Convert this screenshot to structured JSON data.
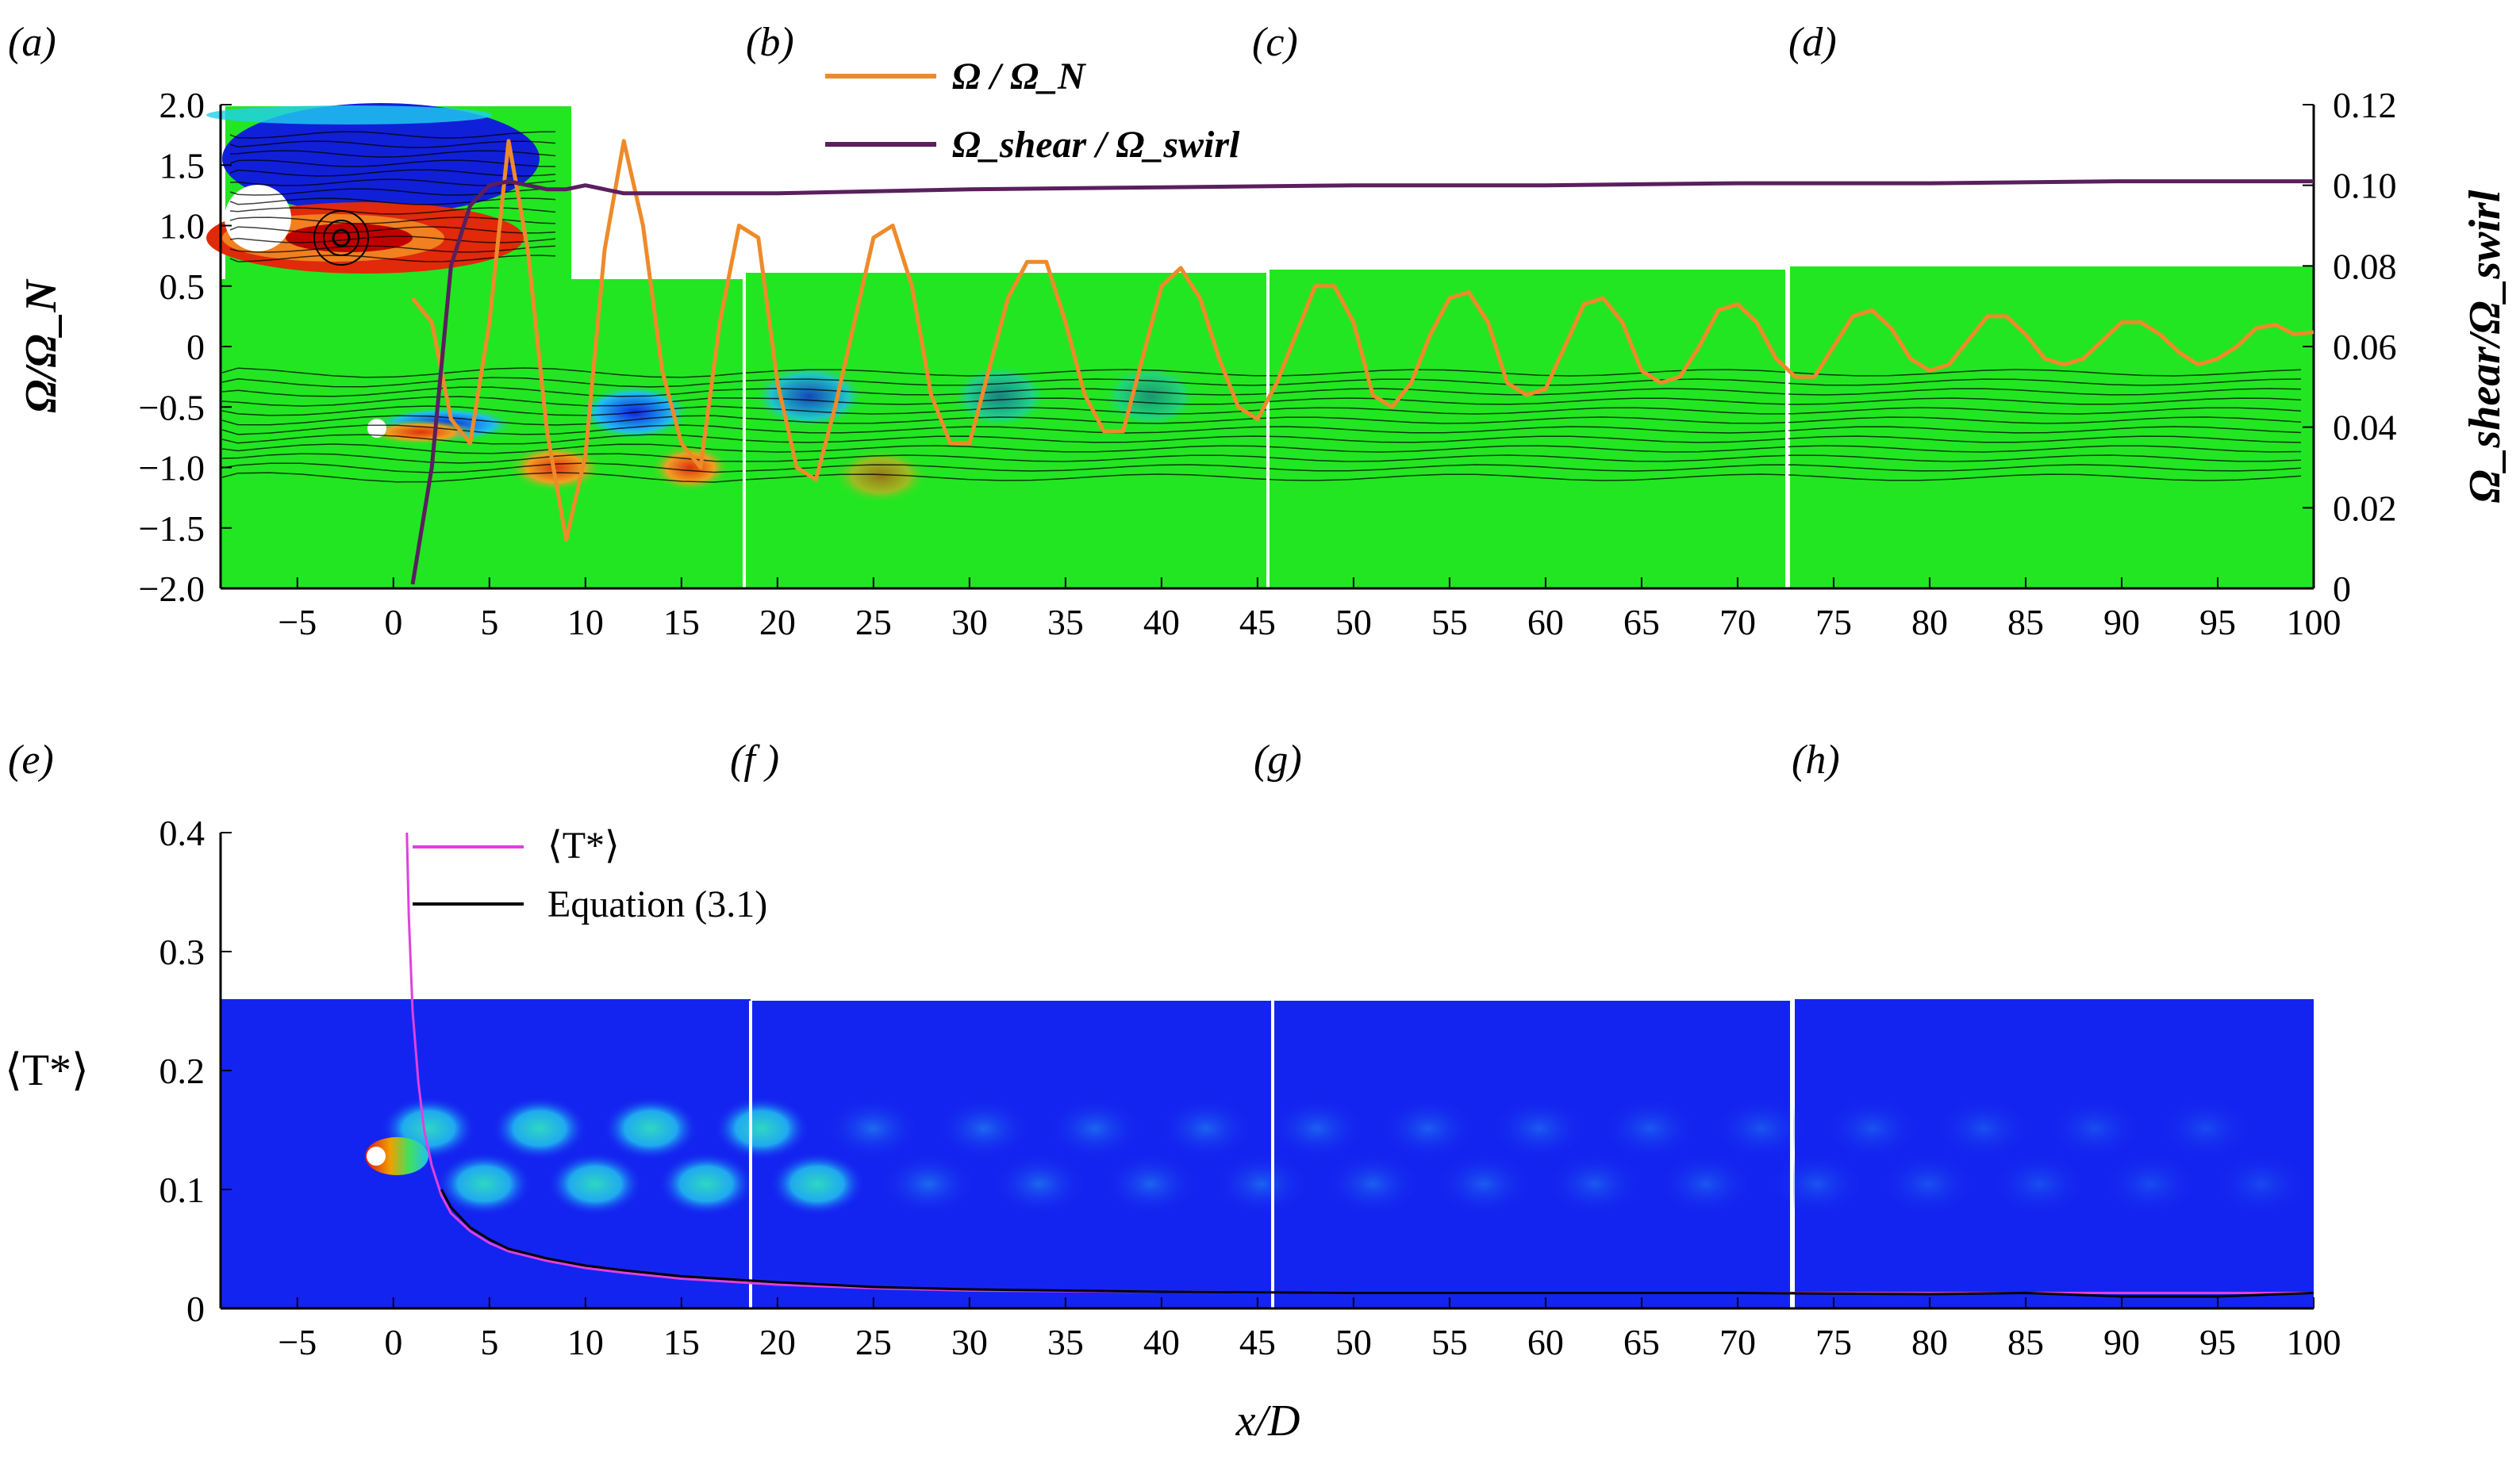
{
  "top_chart": {
    "panel_labels": [
      "(a)",
      "(b)",
      "(c)",
      "(d)"
    ],
    "ylabel_left": "Ω/Ω_N",
    "ylabel_right": "Ω_shear/Ω_swirl",
    "legend": {
      "omega": "Ω / Ω_N",
      "shear": "Ω_shear / Ω_swirl"
    },
    "colors": {
      "omega": "#ee8a2a",
      "shear": "#5a1f5e",
      "field": "#22e622"
    }
  },
  "bottom_chart": {
    "panel_labels": [
      "(e)",
      "(f )",
      "(g)",
      "(h)"
    ],
    "ylabel": "⟨T*⟩",
    "xlabel": "x/D",
    "legend": {
      "t": "⟨T*⟩",
      "eq": "Equation (3.1)"
    },
    "colors": {
      "t": "#e040e0",
      "eq": "#000000",
      "field": "#1424f0"
    }
  },
  "chart_data": [
    {
      "type": "line",
      "xlim": [
        -9,
        100
      ],
      "ylim": [
        -2.0,
        2.0
      ],
      "y2lim": [
        0,
        0.12
      ],
      "x_ticks": [
        -5,
        0,
        5,
        10,
        15,
        20,
        25,
        30,
        35,
        40,
        45,
        50,
        55,
        60,
        65,
        70,
        75,
        80,
        85,
        90,
        95,
        100
      ],
      "y_ticks": [
        "−2.0",
        "−1.5",
        "−1.0",
        "−0.5",
        "0",
        "0.5",
        "1.0",
        "1.5",
        "2.0"
      ],
      "y_tick_values": [
        -2.0,
        -1.5,
        -1.0,
        -0.5,
        0,
        0.5,
        1.0,
        1.5,
        2.0
      ],
      "y2_ticks": [
        "0",
        "0.02",
        "0.04",
        "0.06",
        "0.08",
        "0.10",
        "0.12"
      ],
      "y2_tick_values": [
        0,
        0.02,
        0.04,
        0.06,
        0.08,
        0.1,
        0.12
      ],
      "series": [
        {
          "name": "Ω / Ω_N",
          "axis": "left",
          "x": [
            1,
            2,
            3,
            4,
            5,
            6,
            7,
            8,
            9,
            10,
            11,
            12,
            13,
            14,
            15,
            16,
            17,
            18,
            19,
            20,
            21,
            22,
            23,
            24,
            25,
            26,
            27,
            28,
            29,
            30,
            31,
            32,
            33,
            34,
            35,
            36,
            37,
            38,
            39,
            40,
            41,
            42,
            43,
            44,
            45,
            46,
            47,
            48,
            49,
            50,
            51,
            52,
            53,
            54,
            55,
            56,
            57,
            58,
            59,
            60,
            61,
            62,
            63,
            64,
            65,
            66,
            67,
            68,
            69,
            70,
            71,
            72,
            73,
            74,
            75,
            76,
            77,
            78,
            79,
            80,
            81,
            82,
            83,
            84,
            85,
            86,
            87,
            88,
            89,
            90,
            91,
            92,
            93,
            94,
            95,
            96,
            97,
            98,
            99,
            100
          ],
          "y": [
            0.4,
            0.2,
            -0.6,
            -0.8,
            0.2,
            1.7,
            0.8,
            -0.7,
            -1.6,
            -0.9,
            0.8,
            1.7,
            1.0,
            -0.2,
            -0.8,
            -1.0,
            0.2,
            1.0,
            0.9,
            -0.3,
            -1.0,
            -1.1,
            -0.5,
            0.2,
            0.9,
            1.0,
            0.5,
            -0.4,
            -0.8,
            -0.8,
            -0.2,
            0.4,
            0.7,
            0.7,
            0.2,
            -0.4,
            -0.7,
            -0.7,
            -0.1,
            0.5,
            0.65,
            0.4,
            -0.1,
            -0.5,
            -0.6,
            -0.3,
            0.1,
            0.5,
            0.5,
            0.2,
            -0.4,
            -0.5,
            -0.3,
            0.1,
            0.4,
            0.45,
            0.2,
            -0.3,
            -0.4,
            -0.35,
            0.0,
            0.35,
            0.4,
            0.2,
            -0.2,
            -0.3,
            -0.25,
            0.0,
            0.3,
            0.35,
            0.2,
            -0.1,
            -0.25,
            -0.25,
            0.0,
            0.25,
            0.3,
            0.15,
            -0.1,
            -0.2,
            -0.15,
            0.05,
            0.25,
            0.25,
            0.1,
            -0.1,
            -0.15,
            -0.1,
            0.05,
            0.2,
            0.2,
            0.1,
            -0.05,
            -0.15,
            -0.1,
            0.0,
            0.15,
            0.18,
            0.1,
            0.12
          ]
        },
        {
          "name": "Ω_shear / Ω_swirl",
          "axis": "right",
          "x": [
            1,
            2,
            3,
            4,
            5,
            6,
            7,
            8,
            9,
            10,
            12,
            15,
            20,
            25,
            30,
            40,
            50,
            60,
            70,
            80,
            90,
            100
          ],
          "y": [
            0.001,
            0.03,
            0.08,
            0.095,
            0.1,
            0.101,
            0.1,
            0.099,
            0.099,
            0.1,
            0.098,
            0.098,
            0.098,
            0.0985,
            0.099,
            0.0995,
            0.1,
            0.1,
            0.1005,
            0.1005,
            0.101,
            0.101
          ]
        }
      ]
    },
    {
      "type": "line",
      "xlim": [
        -9,
        100
      ],
      "ylim": [
        0,
        0.4
      ],
      "x_ticks": [
        -5,
        0,
        5,
        10,
        15,
        20,
        25,
        30,
        35,
        40,
        45,
        50,
        55,
        60,
        65,
        70,
        75,
        80,
        85,
        90,
        95,
        100
      ],
      "y_ticks": [
        "0",
        "0.1",
        "0.2",
        "0.3",
        "0.4"
      ],
      "y_tick_values": [
        0,
        0.1,
        0.2,
        0.3,
        0.4
      ],
      "xlabel": "x/D",
      "ylabel": "⟨T*⟩",
      "series": [
        {
          "name": "⟨T*⟩",
          "x": [
            0.7,
            0.8,
            1.0,
            1.3,
            1.6,
            2.0,
            2.5,
            3.0,
            4.0,
            5.0,
            6.0,
            8.0,
            10,
            12,
            15,
            20,
            25,
            30,
            40,
            50,
            60,
            70,
            80,
            90,
            95,
            100
          ],
          "y": [
            0.4,
            0.33,
            0.25,
            0.19,
            0.15,
            0.12,
            0.095,
            0.08,
            0.065,
            0.055,
            0.048,
            0.04,
            0.034,
            0.03,
            0.025,
            0.02,
            0.017,
            0.015,
            0.014,
            0.013,
            0.013,
            0.013,
            0.013,
            0.013,
            0.013,
            0.013
          ]
        },
        {
          "name": "Equation (3.1)",
          "x": [
            2.5,
            3.0,
            4.0,
            5.0,
            6.0,
            8.0,
            10,
            12,
            15,
            20,
            25,
            30,
            40,
            50,
            60,
            70,
            80,
            85,
            90,
            95,
            100
          ],
          "y": [
            0.1,
            0.085,
            0.068,
            0.058,
            0.05,
            0.042,
            0.036,
            0.032,
            0.027,
            0.022,
            0.018,
            0.016,
            0.014,
            0.013,
            0.013,
            0.013,
            0.012,
            0.013,
            0.01,
            0.01,
            0.013
          ]
        }
      ]
    }
  ]
}
